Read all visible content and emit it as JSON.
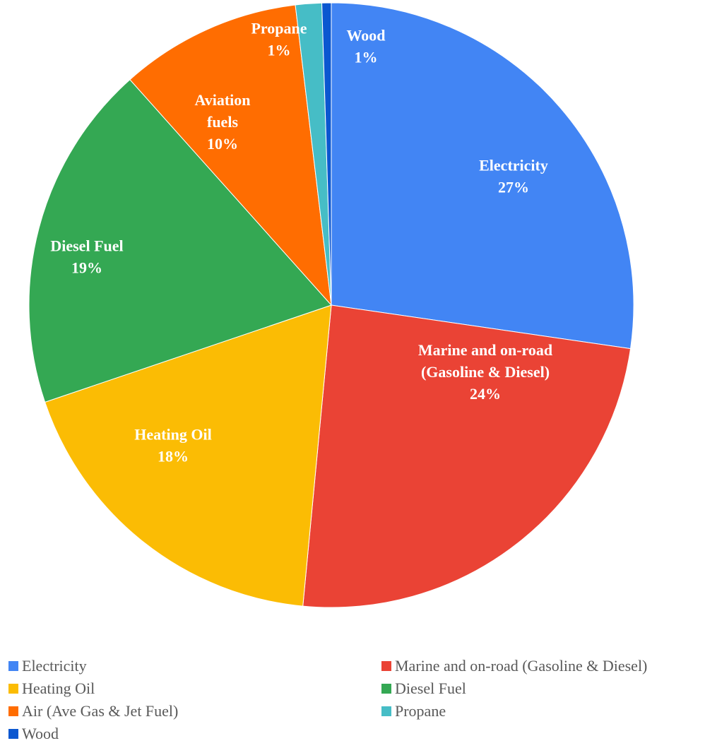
{
  "chart_data": {
    "type": "pie",
    "title": "",
    "start_angle_deg": 0,
    "direction": "clockwise",
    "slices": [
      {
        "name": "Electricity",
        "label_lines": [
          "Electricity",
          "27%"
        ],
        "value": 27.3,
        "color": "#4285F4"
      },
      {
        "name": "Marine and on-road (Gasoline & Diesel)",
        "label_lines": [
          "Marine and on-road",
          "(Gasoline & Diesel)",
          "24%"
        ],
        "value": 24.2,
        "color": "#EA4335"
      },
      {
        "name": "Heating Oil",
        "label_lines": [
          "Heating Oil",
          "18%"
        ],
        "value": 18.3,
        "color": "#FBBC04"
      },
      {
        "name": "Diesel Fuel",
        "label_lines": [
          "Diesel Fuel",
          "19%"
        ],
        "value": 18.6,
        "color": "#34A853"
      },
      {
        "name": "Air (Ave Gas & Jet Fuel)",
        "label_lines": [
          "Aviation",
          "fuels",
          "10%"
        ],
        "value": 9.7,
        "color": "#FF6D01"
      },
      {
        "name": "Propane",
        "label_lines": [
          "Propane",
          "1%"
        ],
        "value": 1.4,
        "color": "#46BDC6"
      },
      {
        "name": "Wood",
        "label_lines": [
          "Wood",
          "1%"
        ],
        "value": 0.5,
        "color": "#0B57D0"
      }
    ],
    "legend": {
      "position": "bottom"
    }
  }
}
